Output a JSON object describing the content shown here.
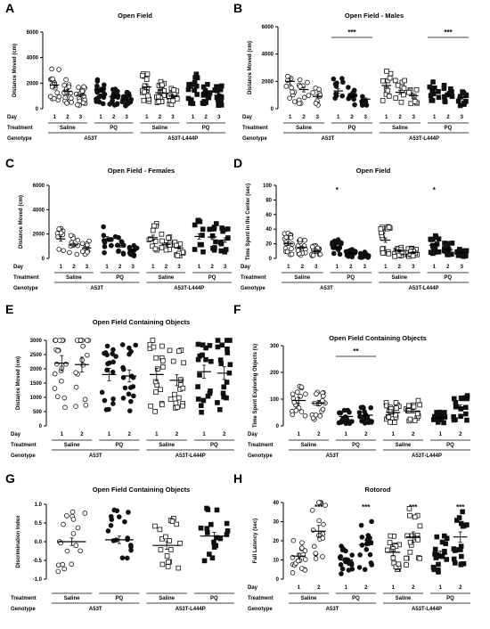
{
  "figure": {
    "row_labels": {
      "day": "Day",
      "treatment": "Treatment",
      "genotype": "Genotype"
    },
    "treatments": [
      "Saline",
      "PQ"
    ],
    "genotypes": [
      "A53T",
      "A53T-L444P"
    ]
  },
  "chart_data": [
    {
      "panel": "A",
      "type": "scatter",
      "title": "Open Field",
      "ylabel": "Distance Moved (cm)",
      "ylim": [
        0,
        6000
      ],
      "yticks": [
        0,
        2000,
        4000,
        6000
      ],
      "days": [
        "1",
        "2",
        "3"
      ],
      "groups": [
        {
          "genotype": "A53T",
          "treatment": "Saline",
          "marker": "open-circle",
          "means": [
            1850,
            1350,
            1050
          ]
        },
        {
          "genotype": "A53T",
          "treatment": "PQ",
          "marker": "filled-circle",
          "means": [
            1500,
            950,
            750
          ]
        },
        {
          "genotype": "A53T-L444P",
          "treatment": "Saline",
          "marker": "open-square",
          "means": [
            1700,
            1250,
            1000
          ]
        },
        {
          "genotype": "A53T-L444P",
          "treatment": "PQ",
          "marker": "filled-square",
          "means": [
            1600,
            1200,
            1050
          ]
        }
      ],
      "significance": []
    },
    {
      "panel": "B",
      "type": "scatter",
      "title": "Open Field - Males",
      "ylabel": "Distance Moved (cm)",
      "ylim": [
        0,
        6000
      ],
      "yticks": [
        0,
        2000,
        4000,
        6000
      ],
      "days": [
        "1",
        "2",
        "3"
      ],
      "groups": [
        {
          "genotype": "A53T",
          "treatment": "Saline",
          "marker": "open-circle",
          "means": [
            2000,
            1400,
            900
          ]
        },
        {
          "genotype": "A53T",
          "treatment": "PQ",
          "marker": "filled-circle",
          "means": [
            1300,
            900,
            700
          ]
        },
        {
          "genotype": "A53T-L444P",
          "treatment": "Saline",
          "marker": "open-square",
          "means": [
            1700,
            1200,
            950
          ]
        },
        {
          "genotype": "A53T-L444P",
          "treatment": "PQ",
          "marker": "filled-square",
          "means": [
            1400,
            1000,
            800
          ]
        }
      ],
      "significance": [
        {
          "group": 1,
          "label": "***"
        },
        {
          "group": 3,
          "label": "***"
        }
      ]
    },
    {
      "panel": "C",
      "type": "scatter",
      "title": "Open Field - Females",
      "ylabel": "Distance Moved (cm)",
      "ylim": [
        0,
        6000
      ],
      "yticks": [
        0,
        2000,
        4000,
        6000
      ],
      "days": [
        "1",
        "2",
        "3"
      ],
      "groups": [
        {
          "genotype": "A53T",
          "treatment": "Saline",
          "marker": "open-circle",
          "means": [
            1600,
            1100,
            850
          ]
        },
        {
          "genotype": "A53T",
          "treatment": "PQ",
          "marker": "filled-circle",
          "means": [
            1600,
            1050,
            700
          ]
        },
        {
          "genotype": "A53T-L444P",
          "treatment": "Saline",
          "marker": "open-square",
          "means": [
            1700,
            1150,
            850
          ]
        },
        {
          "genotype": "A53T-L444P",
          "treatment": "PQ",
          "marker": "filled-square",
          "means": [
            1800,
            1750,
            1500
          ]
        }
      ],
      "significance": []
    },
    {
      "panel": "D",
      "type": "scatter",
      "title": "Open Field",
      "ylabel": "Time Spent in the Center (sec)",
      "ylim": [
        0,
        100
      ],
      "yticks": [
        0,
        20,
        40,
        60,
        80,
        100
      ],
      "days": [
        "1",
        "2",
        "3"
      ],
      "groups": [
        {
          "genotype": "A53T",
          "treatment": "Saline",
          "marker": "open-circle",
          "means": [
            20,
            15,
            10
          ]
        },
        {
          "genotype": "A53T",
          "treatment": "PQ",
          "marker": "filled-circle",
          "means": [
            15,
            7,
            5
          ]
        },
        {
          "genotype": "A53T-L444P",
          "treatment": "Saline",
          "marker": "open-square",
          "means": [
            25,
            10,
            8
          ]
        },
        {
          "genotype": "A53T-L444P",
          "treatment": "PQ",
          "marker": "filled-square",
          "means": [
            18,
            12,
            8
          ]
        }
      ],
      "significance": [
        {
          "group": 1,
          "label": "*",
          "day": 0
        },
        {
          "group": 3,
          "label": "*",
          "day": 0
        }
      ]
    },
    {
      "panel": "E",
      "type": "scatter",
      "title": "Open Field Containing Objects",
      "ylabel": "Distance Moved (cm)",
      "ylim": [
        0,
        3000
      ],
      "yticks": [
        0,
        500,
        1000,
        1500,
        2000,
        2500,
        3000
      ],
      "days": [
        "1",
        "2"
      ],
      "groups": [
        {
          "genotype": "A53T",
          "treatment": "Saline",
          "marker": "open-circle",
          "means": [
            2200,
            2150
          ]
        },
        {
          "genotype": "A53T",
          "treatment": "PQ",
          "marker": "filled-circle",
          "means": [
            1800,
            1750
          ]
        },
        {
          "genotype": "A53T-L444P",
          "treatment": "Saline",
          "marker": "open-square",
          "means": [
            1800,
            1600
          ]
        },
        {
          "genotype": "A53T-L444P",
          "treatment": "PQ",
          "marker": "filled-square",
          "means": [
            1900,
            1850
          ]
        }
      ],
      "significance": []
    },
    {
      "panel": "F",
      "type": "scatter",
      "title": "Open Field Containing Objects",
      "ylabel": "Time Spent Exploring Objects (s)",
      "ylim": [
        0,
        300
      ],
      "yticks": [
        0,
        100,
        200,
        300
      ],
      "days": [
        "1",
        "2"
      ],
      "groups": [
        {
          "genotype": "A53T",
          "treatment": "Saline",
          "marker": "open-circle",
          "means": [
            95,
            85
          ]
        },
        {
          "genotype": "A53T",
          "treatment": "PQ",
          "marker": "filled-circle",
          "means": [
            35,
            40
          ]
        },
        {
          "genotype": "A53T-L444P",
          "treatment": "Saline",
          "marker": "open-square",
          "means": [
            50,
            55
          ]
        },
        {
          "genotype": "A53T-L444P",
          "treatment": "PQ",
          "marker": "filled-square",
          "means": [
            30,
            70
          ]
        }
      ],
      "significance": [
        {
          "group": 1,
          "label": "**"
        }
      ]
    },
    {
      "panel": "G",
      "type": "scatter",
      "title": "Open Field Containing Objects",
      "ylabel": "Discrimination Index",
      "ylim": [
        -1.0,
        1.0
      ],
      "yticks": [
        -1.0,
        -0.5,
        0.0,
        0.5,
        1.0
      ],
      "days": [],
      "groups": [
        {
          "genotype": "A53T",
          "treatment": "Saline",
          "marker": "open-circle",
          "means": [
            0.0
          ]
        },
        {
          "genotype": "A53T",
          "treatment": "PQ",
          "marker": "filled-circle",
          "means": [
            0.05
          ]
        },
        {
          "genotype": "A53T-L444P",
          "treatment": "Saline",
          "marker": "open-square",
          "means": [
            -0.1
          ]
        },
        {
          "genotype": "A53T-L444P",
          "treatment": "PQ",
          "marker": "filled-square",
          "means": [
            0.15
          ]
        }
      ],
      "significance": []
    },
    {
      "panel": "H",
      "type": "scatter",
      "title": "Rotorod",
      "ylabel": "Fall Latency (sec)",
      "ylim": [
        0,
        40
      ],
      "yticks": [
        0,
        10,
        20,
        30,
        40
      ],
      "days": [
        "1",
        "2"
      ],
      "groups": [
        {
          "genotype": "A53T",
          "treatment": "Saline",
          "marker": "open-circle",
          "means": [
            12,
            25
          ]
        },
        {
          "genotype": "A53T",
          "treatment": "PQ",
          "marker": "filled-circle",
          "means": [
            10,
            18
          ]
        },
        {
          "genotype": "A53T-L444P",
          "treatment": "Saline",
          "marker": "open-square",
          "means": [
            14,
            22
          ]
        },
        {
          "genotype": "A53T-L444P",
          "treatment": "PQ",
          "marker": "filled-square",
          "means": [
            13,
            22
          ]
        }
      ],
      "significance": [
        {
          "group": 0,
          "label": "***",
          "day": 1
        },
        {
          "group": 1,
          "label": "***",
          "day": 1
        },
        {
          "group": 2,
          "label": "***",
          "day": 1
        },
        {
          "group": 3,
          "label": "***",
          "day": 1
        }
      ]
    }
  ]
}
